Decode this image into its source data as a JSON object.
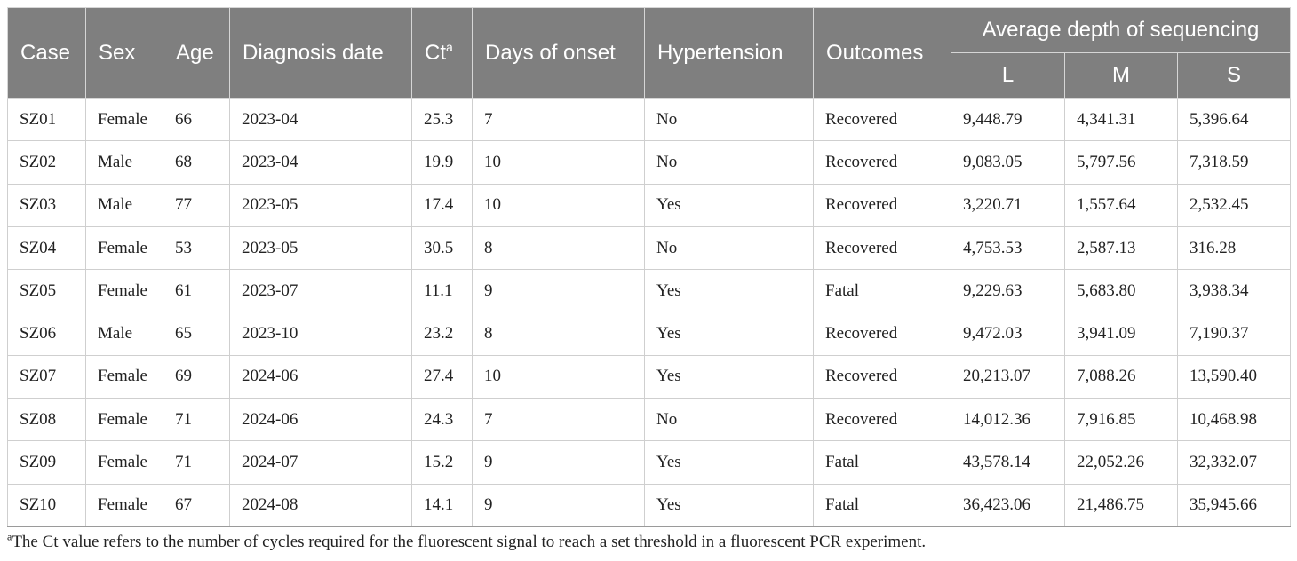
{
  "table": {
    "headers": {
      "case": "Case",
      "sex": "Sex",
      "age": "Age",
      "diagnosis_date": "Diagnosis date",
      "ct": "Ct",
      "ct_sup": "a",
      "days_of_onset": "Days of onset",
      "hypertension": "Hypertension",
      "outcomes": "Outcomes",
      "avg_depth": "Average depth of sequencing",
      "l": "L",
      "m": "M",
      "s": "S"
    },
    "rows": [
      [
        "SZ01",
        "Female",
        "66",
        "2023-04",
        "25.3",
        "7",
        "No",
        "Recovered",
        "9,448.79",
        "4,341.31",
        "5,396.64"
      ],
      [
        "SZ02",
        "Male",
        "68",
        "2023-04",
        "19.9",
        "10",
        "No",
        "Recovered",
        "9,083.05",
        "5,797.56",
        "7,318.59"
      ],
      [
        "SZ03",
        "Male",
        "77",
        "2023-05",
        "17.4",
        "10",
        "Yes",
        "Recovered",
        "3,220.71",
        "1,557.64",
        "2,532.45"
      ],
      [
        "SZ04",
        "Female",
        "53",
        "2023-05",
        "30.5",
        "8",
        "No",
        "Recovered",
        "4,753.53",
        "2,587.13",
        "316.28"
      ],
      [
        "SZ05",
        "Female",
        "61",
        "2023-07",
        "11.1",
        "9",
        "Yes",
        "Fatal",
        "9,229.63",
        "5,683.80",
        "3,938.34"
      ],
      [
        "SZ06",
        "Male",
        "65",
        "2023-10",
        "23.2",
        "8",
        "Yes",
        "Recovered",
        "9,472.03",
        "3,941.09",
        "7,190.37"
      ],
      [
        "SZ07",
        "Female",
        "69",
        "2024-06",
        "27.4",
        "10",
        "Yes",
        "Recovered",
        "20,213.07",
        "7,088.26",
        "13,590.40"
      ],
      [
        "SZ08",
        "Female",
        "71",
        "2024-06",
        "24.3",
        "7",
        "No",
        "Recovered",
        "14,012.36",
        "7,916.85",
        "10,468.98"
      ],
      [
        "SZ09",
        "Female",
        "71",
        "2024-07",
        "15.2",
        "9",
        "Yes",
        "Fatal",
        "43,578.14",
        "22,052.26",
        "32,332.07"
      ],
      [
        "SZ10",
        "Female",
        "67",
        "2024-08",
        "14.1",
        "9",
        "Yes",
        "Fatal",
        "36,423.06",
        "21,486.75",
        "35,945.66"
      ]
    ]
  },
  "footnote": {
    "marker": "a",
    "text": "The Ct value refers to the number of cycles required for the fluorescent signal to reach a set threshold in a fluorescent PCR experiment."
  },
  "colors": {
    "header_bg": "#7f7f7f",
    "header_text": "#ffffff",
    "grid": "#cfcfcf"
  }
}
